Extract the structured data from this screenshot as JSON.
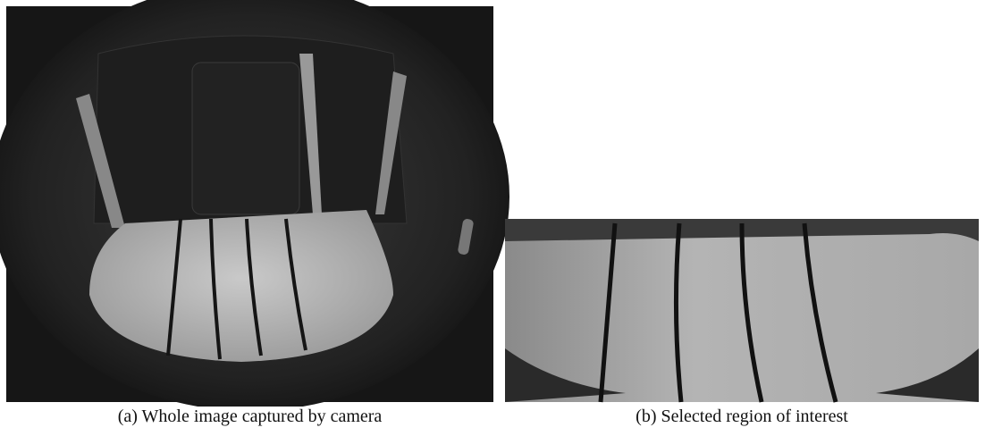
{
  "figure": {
    "subfigures": [
      {
        "caption": "(a) Whole image captured by camera"
      },
      {
        "caption": "(b) Selected region of interest"
      }
    ]
  }
}
